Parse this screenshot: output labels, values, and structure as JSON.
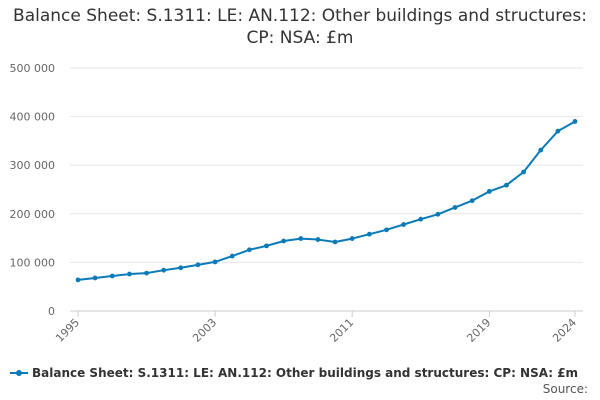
{
  "title": "Balance Sheet: S.1311: LE: AN.112: Other buildings and structures: CP: NSA: £m",
  "legend_label": "Balance Sheet: S.1311: LE: AN.112: Other buildings and structures: CP: NSA: £m",
  "source_label": "Source:",
  "colors": {
    "series": "#0a7ab8",
    "grid": "#e6e6e6",
    "axis": "#cccccc"
  },
  "chart_data": {
    "type": "line",
    "title": "Balance Sheet: S.1311: LE: AN.112: Other buildings and structures: CP: NSA: £m",
    "xlabel": "",
    "ylabel": "",
    "x": [
      1995,
      1996,
      1997,
      1998,
      1999,
      2000,
      2001,
      2002,
      2003,
      2004,
      2005,
      2006,
      2007,
      2008,
      2009,
      2010,
      2011,
      2012,
      2013,
      2014,
      2015,
      2016,
      2017,
      2018,
      2019,
      2020,
      2021,
      2022,
      2023,
      2024
    ],
    "series": [
      {
        "name": "Balance Sheet: S.1311: LE: AN.112: Other buildings and structures: CP: NSA: £m",
        "values": [
          64000,
          68000,
          72000,
          76000,
          78000,
          84000,
          89000,
          95000,
          101000,
          113000,
          126000,
          134000,
          144000,
          149000,
          147000,
          142000,
          149000,
          158000,
          167000,
          178000,
          189000,
          199000,
          213000,
          227000,
          246000,
          259000,
          286000,
          331000,
          370000,
          390000
        ]
      }
    ],
    "x_tick_labels": [
      "1995",
      "2003",
      "2011",
      "2019",
      "2024"
    ],
    "x_ticks": [
      1995,
      2003,
      2011,
      2019,
      2024
    ],
    "y_ticks": [
      0,
      100000,
      200000,
      300000,
      400000,
      500000
    ],
    "y_tick_labels": [
      "0",
      "100 000",
      "200 000",
      "300 000",
      "400 000",
      "500 000"
    ],
    "ylim": [
      0,
      500000
    ],
    "xlim": [
      1995,
      2024
    ],
    "grid": true,
    "legend_position": "bottom"
  }
}
